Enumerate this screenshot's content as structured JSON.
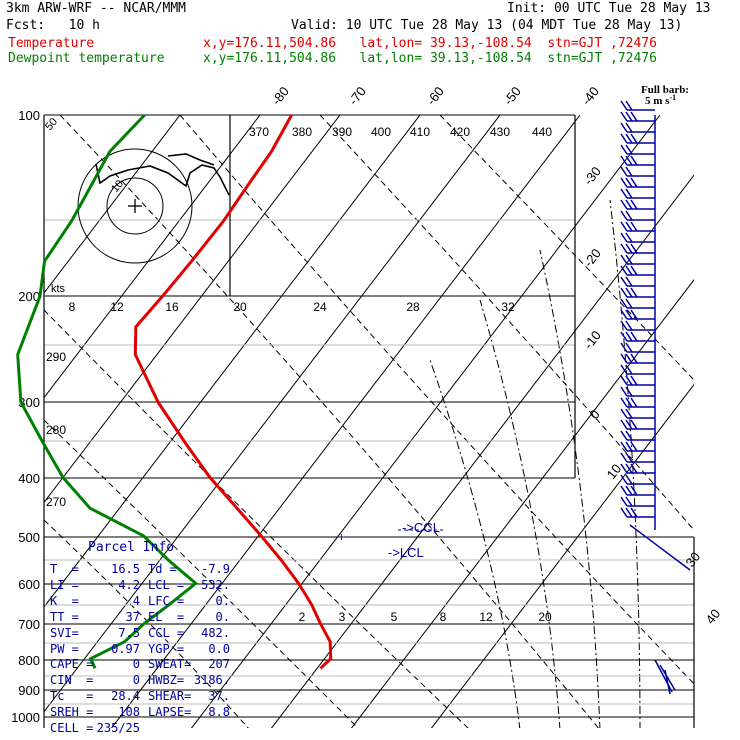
{
  "header": {
    "title": "3km ARW-WRF -- NCAR/MMM",
    "init": "Init: 00 UTC Tue 28 May 13",
    "fcst": "Fcst:   10 h",
    "valid": "Valid: 10 UTC Tue 28 May 13 (04 MDT Tue 28 May 13)",
    "temp_label": "Temperature",
    "temp_info": "x,y=176.11,504.86   lat,lon= 39.13,-108.54  stn=GJT ,72476",
    "dew_label": "Dewpoint temperature",
    "dew_info": "x,y=176.11,504.86   lat,lon= 39.13,-108.54  stn=GJT ,72476"
  },
  "colors": {
    "temperature": "#e00000",
    "dewpoint": "#008000",
    "parcel": "#0000a0",
    "grid": "#000000"
  },
  "chart_data": {
    "type": "line",
    "title": "Skew-T log-P sounding",
    "pressure_levels": [
      "100",
      "200",
      "300",
      "400",
      "500",
      "600",
      "700",
      "800",
      "900",
      "1000"
    ],
    "top_isotherms": [
      "-80",
      "-70",
      "-60",
      "-50",
      "-40"
    ],
    "right_isotherms": [
      "-30",
      "-20",
      "-10",
      "0",
      "10"
    ],
    "lower_right_isotherms": [
      "30",
      "40"
    ],
    "theta_e_labels": [
      "370",
      "380",
      "390",
      "400",
      "410",
      "420",
      "430",
      "440"
    ],
    "hodograph_speed_labels": [
      "8",
      "12",
      "16",
      "20",
      "24",
      "28",
      "32"
    ],
    "hodograph_units": "kts",
    "left_theta_labels": [
      "290",
      "280",
      "270"
    ],
    "ring_labels": [
      "50",
      "10"
    ],
    "mixing_ratio_labels": [
      "2",
      "3",
      "5",
      "8",
      "12",
      "20"
    ],
    "ccl_label": "CCL",
    "lcl_label": "LCL",
    "full_barb_label": "Full barb:",
    "full_barb_value": "5 m s",
    "series": [
      {
        "name": "Temperature",
        "pressure": [
          100,
          115,
          130,
          150,
          175,
          200,
          225,
          250,
          300,
          350,
          400,
          450,
          500,
          550,
          600,
          650,
          700,
          750,
          800,
          830
        ],
        "temp_c": [
          -55,
          -55,
          -56,
          -57,
          -59,
          -61,
          -63,
          -60,
          -50,
          -40,
          -31,
          -22,
          -14,
          -7,
          -1,
          4,
          8,
          12,
          14,
          13
        ]
      },
      {
        "name": "Dewpoint temperature",
        "pressure": [
          100,
          115,
          130,
          150,
          175,
          200,
          250,
          300,
          350,
          400,
          450,
          500,
          550,
          600,
          650,
          700,
          750,
          800,
          830
        ],
        "temp_c": [
          -85,
          -88,
          -88,
          -88,
          -89,
          -86,
          -84,
          -78,
          -69,
          -61,
          -52,
          -38,
          -30,
          -22,
          -25,
          -28,
          -30,
          -35,
          -33
        ]
      }
    ]
  },
  "parcel_info": {
    "title": "Parcel Info",
    "rows": [
      [
        "T  =",
        "16.5",
        "Td =",
        "-7.9"
      ],
      [
        "LI =",
        "4.2",
        "LCL =",
        "532."
      ],
      [
        "K  =",
        "4",
        "LFC =",
        "0."
      ],
      [
        "TT =",
        "37",
        "EL  =",
        "0."
      ],
      [
        "SVI=",
        "7.5",
        "CCL =",
        "482."
      ],
      [
        "PW =",
        "0.97",
        "YGP =",
        "0.0"
      ],
      [
        "CAPE =",
        "0",
        "SWEAT=",
        "207"
      ],
      [
        "CIN  =",
        "0",
        "HWBZ=",
        "3186."
      ],
      [
        "Tc   =",
        "28.4",
        "SHEAR=",
        "37."
      ],
      [
        "SREH =",
        "108",
        "LAPSE=",
        "8.8"
      ],
      [
        "CELL =",
        "235/25",
        "",
        ""
      ]
    ]
  }
}
